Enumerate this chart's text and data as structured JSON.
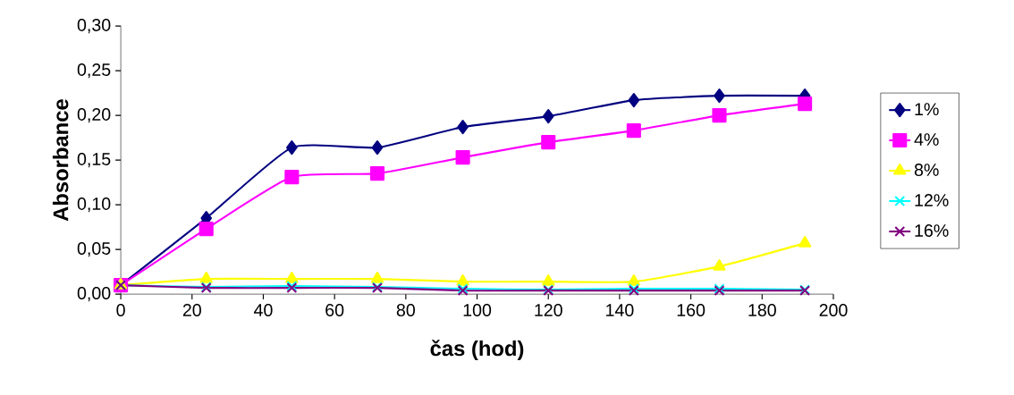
{
  "chart_data": {
    "type": "line",
    "xlabel": "čas (hod)",
    "ylabel": "Absorbance",
    "x": [
      0,
      24,
      48,
      72,
      96,
      120,
      144,
      168,
      192
    ],
    "series": [
      {
        "name": "1%",
        "color": "#000080",
        "marker": "diamond",
        "values": [
          0.01,
          0.085,
          0.164,
          0.164,
          0.187,
          0.199,
          0.217,
          0.222,
          0.222
        ]
      },
      {
        "name": "4%",
        "color": "#ff00ff",
        "marker": "square",
        "values": [
          0.01,
          0.073,
          0.131,
          0.135,
          0.153,
          0.17,
          0.183,
          0.2,
          0.213
        ]
      },
      {
        "name": "8%",
        "color": "#ffff00",
        "marker": "triangle",
        "values": [
          0.01,
          0.017,
          0.017,
          0.017,
          0.014,
          0.014,
          0.014,
          0.031,
          0.057
        ]
      },
      {
        "name": "12%",
        "color": "#00ffff",
        "marker": "cross",
        "values": [
          0.01,
          0.008,
          0.009,
          0.008,
          0.006,
          0.005,
          0.006,
          0.006,
          0.005
        ]
      },
      {
        "name": "16%",
        "color": "#800080",
        "marker": "cross",
        "values": [
          0.01,
          0.007,
          0.007,
          0.007,
          0.004,
          0.004,
          0.004,
          0.004,
          0.004
        ]
      }
    ],
    "xlim": [
      0,
      200
    ],
    "xticks": [
      0,
      20,
      40,
      60,
      80,
      100,
      120,
      140,
      160,
      180,
      200
    ],
    "ylim": [
      0,
      0.3
    ],
    "yticks": [
      {
        "value": 0,
        "label": "0,00"
      },
      {
        "value": 0.05,
        "label": "0,05"
      },
      {
        "value": 0.1,
        "label": "0,10"
      },
      {
        "value": 0.15,
        "label": "0,15"
      },
      {
        "value": 0.2,
        "label": "0,20"
      },
      {
        "value": 0.25,
        "label": "0,25"
      },
      {
        "value": 0.3,
        "label": "0,30"
      }
    ],
    "grid": false,
    "legend": "right",
    "line_style": "solid"
  }
}
